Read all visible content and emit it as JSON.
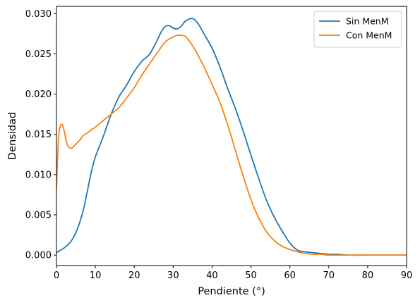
{
  "chart_data": {
    "type": "line",
    "title": "",
    "xlabel": "Pendiente (°)",
    "ylabel": "Densidad",
    "xlim": [
      0,
      90
    ],
    "ylim": [
      -0.0013,
      0.0309
    ],
    "xticks": [
      0,
      10,
      20,
      30,
      40,
      50,
      60,
      70,
      80,
      90
    ],
    "xtick_labels": [
      "0",
      "10",
      "20",
      "30",
      "40",
      "50",
      "60",
      "70",
      "80",
      "90"
    ],
    "yticks": [
      0.0,
      0.005,
      0.01,
      0.015,
      0.02,
      0.025,
      0.03
    ],
    "ytick_labels": [
      "0.000",
      "0.005",
      "0.010",
      "0.015",
      "0.020",
      "0.025",
      "0.030"
    ],
    "grid": false,
    "legend": {
      "placement": "top-right"
    },
    "series": [
      {
        "name": "Sin MenM",
        "color": "#1f77b4",
        "x": [
          0,
          1,
          2,
          3,
          4,
          5,
          6,
          7,
          8,
          9,
          10,
          12,
          14,
          16,
          18,
          20,
          22,
          24,
          26,
          27,
          28,
          29,
          30,
          31,
          32,
          33,
          34,
          35,
          36,
          37,
          38,
          40,
          42,
          44,
          46,
          48,
          50,
          52,
          54,
          56,
          58,
          60,
          62,
          64,
          66,
          68,
          70,
          72,
          75,
          80,
          85,
          90
        ],
        "values": [
          0.0003,
          0.0006,
          0.0009,
          0.0013,
          0.0019,
          0.0028,
          0.0041,
          0.0058,
          0.0081,
          0.0104,
          0.0122,
          0.0147,
          0.0174,
          0.0196,
          0.0211,
          0.0228,
          0.0241,
          0.025,
          0.0268,
          0.0278,
          0.0284,
          0.0285,
          0.0282,
          0.0281,
          0.0284,
          0.029,
          0.0293,
          0.0294,
          0.029,
          0.0283,
          0.0274,
          0.0257,
          0.0234,
          0.0207,
          0.0182,
          0.0154,
          0.0124,
          0.0095,
          0.0068,
          0.0047,
          0.003,
          0.0015,
          0.0006,
          0.0004,
          0.0003,
          0.0002,
          0.0001,
          0.0001,
          0.0,
          0.0,
          0.0,
          0.0
        ]
      },
      {
        "name": "Con MenM",
        "color": "#ff7f0e",
        "x": [
          0,
          0.5,
          1,
          1.5,
          2,
          2.5,
          3,
          3.5,
          4,
          5,
          6,
          7,
          8,
          9,
          10,
          12,
          14,
          16,
          18,
          20,
          22,
          24,
          26,
          28,
          30,
          31,
          32,
          33,
          34,
          35,
          36,
          38,
          40,
          42,
          44,
          46,
          48,
          50,
          52,
          54,
          56,
          58,
          60,
          62,
          64,
          66,
          68,
          70,
          75,
          80,
          85,
          90
        ],
        "values": [
          0.0082,
          0.0143,
          0.016,
          0.0162,
          0.0154,
          0.0142,
          0.0135,
          0.0133,
          0.0133,
          0.0138,
          0.0143,
          0.0149,
          0.0152,
          0.0156,
          0.0159,
          0.0167,
          0.0175,
          0.0183,
          0.0195,
          0.0208,
          0.0224,
          0.0238,
          0.0252,
          0.0265,
          0.0271,
          0.0273,
          0.0273,
          0.0272,
          0.0267,
          0.026,
          0.0252,
          0.0233,
          0.0212,
          0.019,
          0.0162,
          0.013,
          0.0098,
          0.0069,
          0.0046,
          0.0029,
          0.0018,
          0.0011,
          0.0007,
          0.0004,
          0.0002,
          0.0001,
          0.0001,
          0.0,
          0.0,
          0.0,
          0.0,
          0.0
        ]
      }
    ]
  }
}
